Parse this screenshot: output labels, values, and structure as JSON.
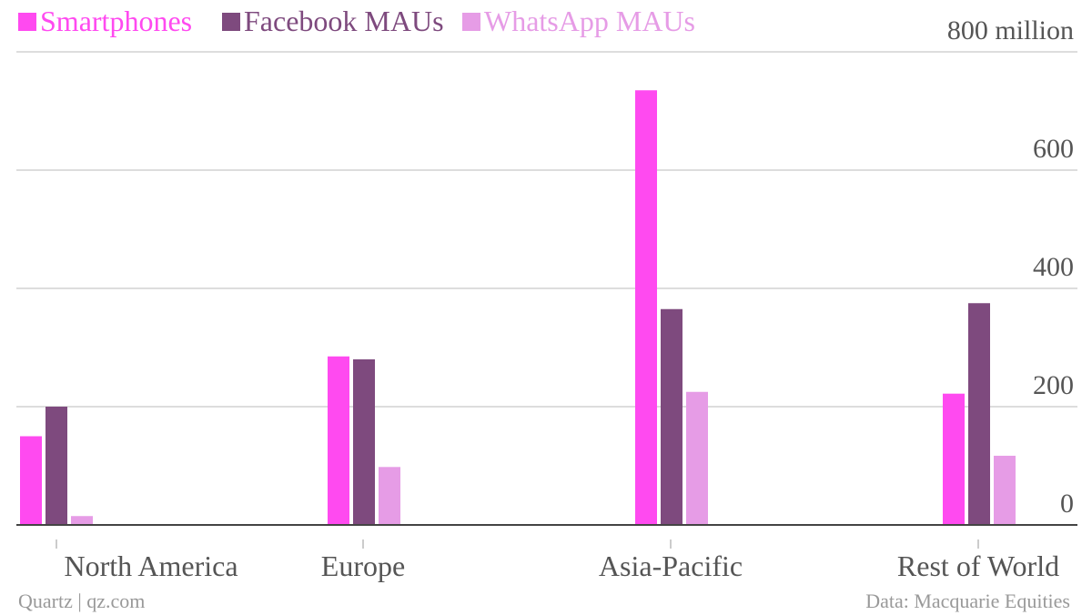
{
  "chart_data": {
    "type": "bar",
    "categories": [
      "North America",
      "Europe",
      "Asia-Pacific",
      "Rest of World"
    ],
    "series": [
      {
        "name": "Smartphones",
        "color": "#ff4af0",
        "values": [
          150,
          285,
          735,
          222
        ]
      },
      {
        "name": "Facebook MAUs",
        "color": "#7e4a7e",
        "values": [
          200,
          280,
          365,
          375
        ]
      },
      {
        "name": "WhatsApp MAUs",
        "color": "#e69ce6",
        "values": [
          15,
          98,
          225,
          117
        ]
      }
    ],
    "ylim": [
      0,
      800
    ],
    "yticks": [
      {
        "value": 0,
        "label": "0"
      },
      {
        "value": 200,
        "label": "200"
      },
      {
        "value": 400,
        "label": "400"
      },
      {
        "value": 600,
        "label": "600"
      },
      {
        "value": 800,
        "label": "800 million"
      }
    ],
    "grid": true,
    "legend_position": "top-left",
    "axis_color": "#444444",
    "grid_color": "#dddddd",
    "text_color": "#555555"
  },
  "footer": {
    "source_left": "Quartz | qz.com",
    "source_right": "Data: Macquarie Equities"
  }
}
